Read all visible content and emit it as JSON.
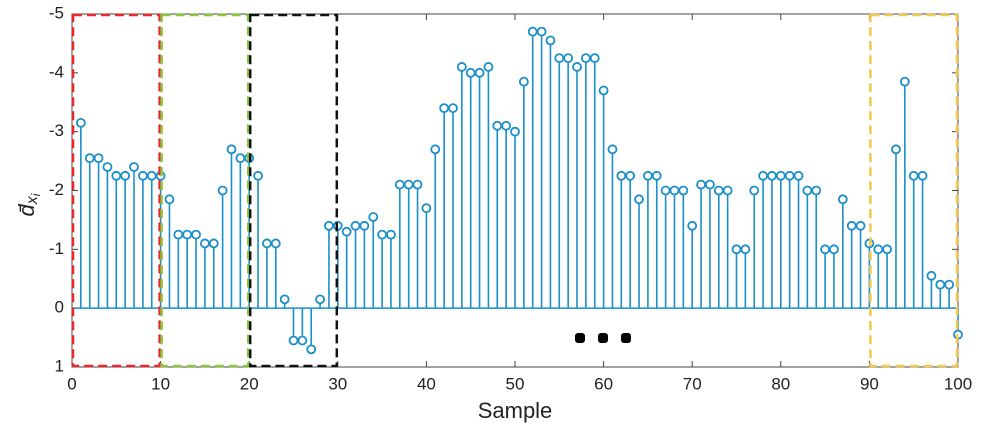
{
  "chart_data": {
    "type": "stem",
    "xlabel": "Sample",
    "ylabel": [
      "d̄",
      "x",
      "i"
    ],
    "x": [
      1,
      2,
      3,
      4,
      5,
      6,
      7,
      8,
      9,
      10,
      11,
      12,
      13,
      14,
      15,
      16,
      17,
      18,
      19,
      20,
      21,
      22,
      23,
      24,
      25,
      26,
      27,
      28,
      29,
      30,
      31,
      32,
      33,
      34,
      35,
      36,
      37,
      38,
      39,
      40,
      41,
      42,
      43,
      44,
      45,
      46,
      47,
      48,
      49,
      50,
      51,
      52,
      53,
      54,
      55,
      56,
      57,
      58,
      59,
      60,
      61,
      62,
      63,
      64,
      65,
      66,
      67,
      68,
      69,
      70,
      71,
      72,
      73,
      74,
      75,
      76,
      77,
      78,
      79,
      80,
      81,
      82,
      83,
      84,
      85,
      86,
      87,
      88,
      89,
      90,
      91,
      92,
      93,
      94,
      95,
      96,
      97,
      98,
      99,
      100
    ],
    "values": [
      -3.15,
      -2.55,
      -2.55,
      -2.4,
      -2.25,
      -2.25,
      -2.4,
      -2.25,
      -2.25,
      -2.25,
      -1.85,
      -1.25,
      -1.25,
      -1.25,
      -1.1,
      -1.1,
      -2.0,
      -2.7,
      -2.55,
      -2.55,
      -2.25,
      -1.1,
      -1.1,
      -0.15,
      0.55,
      0.55,
      0.7,
      -0.15,
      -1.4,
      -1.4,
      -1.3,
      -1.4,
      -1.4,
      -1.55,
      -1.25,
      -1.25,
      -2.1,
      -2.1,
      -2.1,
      -1.7,
      -2.7,
      -3.4,
      -3.4,
      -4.1,
      -4.0,
      -4.0,
      -4.1,
      -3.1,
      -3.1,
      -3.0,
      -3.85,
      -4.7,
      -4.7,
      -4.55,
      -4.25,
      -4.25,
      -4.1,
      -4.25,
      -4.25,
      -3.7,
      -2.7,
      -2.25,
      -2.25,
      -1.85,
      -2.25,
      -2.25,
      -2.0,
      -2.0,
      -2.0,
      -1.4,
      -2.1,
      -2.1,
      -2.0,
      -2.0,
      -1.0,
      -1.0,
      -2.0,
      -2.25,
      -2.25,
      -2.25,
      -2.25,
      -2.25,
      -2.0,
      -2.0,
      -1.0,
      -1.0,
      -1.85,
      -1.4,
      -1.4,
      -1.1,
      -1.0,
      -1.0,
      -2.7,
      -3.85,
      -2.25,
      -2.25,
      -0.55,
      -0.4,
      -0.4,
      0.45
    ],
    "color": "#1a8fc9",
    "xlim": [
      0,
      100
    ],
    "xticks": [
      0,
      10,
      20,
      30,
      40,
      50,
      60,
      70,
      80,
      90,
      100
    ],
    "ylim": [
      -5,
      1
    ],
    "yticks": [
      -5,
      -4,
      -3,
      -2,
      -1,
      0,
      1
    ],
    "y_reversed": true,
    "highlights": [
      {
        "x": [
          0,
          10
        ],
        "color": "#e8282b"
      },
      {
        "x": [
          10,
          20
        ],
        "color": "#8cc63f"
      },
      {
        "x": [
          20,
          30
        ],
        "color": "#111111"
      },
      {
        "x": [
          90,
          100
        ],
        "color": "#f2c94c"
      }
    ]
  }
}
